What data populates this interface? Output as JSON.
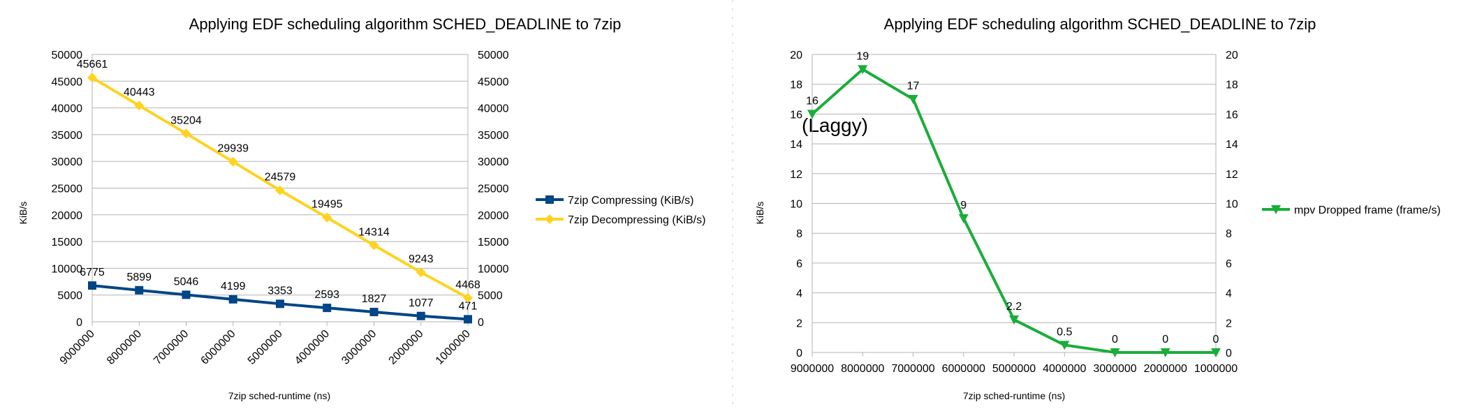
{
  "chart_data": [
    {
      "type": "line",
      "title": "Applying EDF scheduling algorithm SCHED_DEADLINE to 7zip",
      "xlabel": "7zip sched-runtime (ns)",
      "ylabel": "KiB/s",
      "categories": [
        "9000000",
        "8000000",
        "7000000",
        "6000000",
        "5000000",
        "4000000",
        "3000000",
        "2000000",
        "1000000"
      ],
      "ylim": [
        0,
        50000
      ],
      "yticks": [
        0,
        5000,
        10000,
        15000,
        20000,
        25000,
        30000,
        35000,
        40000,
        45000,
        50000
      ],
      "secondary_y": true,
      "grid": true,
      "legend_position": "right",
      "series": [
        {
          "name": "7zip Compressing (KiB/s)",
          "values": [
            6775,
            5899,
            5046,
            4199,
            3353,
            2593,
            1827,
            1077,
            471
          ],
          "labels": [
            "6775",
            "5899",
            "5046",
            "4199",
            "3353",
            "2593",
            "1827",
            "1077",
            "471"
          ],
          "color": "#004586",
          "marker": "square"
        },
        {
          "name": "7zip Decompressing (KiB/s)",
          "values": [
            45661,
            40443,
            35204,
            29939,
            24579,
            19495,
            14314,
            9243,
            4468
          ],
          "labels": [
            "45661",
            "40443",
            "35204",
            "29939",
            "24579",
            "19495",
            "14314",
            "9243",
            "4468"
          ],
          "color": "#ffd320",
          "marker": "diamond"
        }
      ]
    },
    {
      "type": "line",
      "title": "Applying EDF scheduling algorithm SCHED_DEADLINE to 7zip",
      "xlabel": "7zip sched-runtime (ns)",
      "ylabel": "KiB/s",
      "categories": [
        "9000000",
        "8000000",
        "7000000",
        "6000000",
        "5000000",
        "4000000",
        "3000000",
        "2000000",
        "1000000"
      ],
      "ylim": [
        0,
        20
      ],
      "yticks": [
        0,
        2,
        4,
        6,
        8,
        10,
        12,
        14,
        16,
        18,
        20
      ],
      "secondary_y": true,
      "grid": true,
      "legend_position": "right",
      "annotation": "(Laggy)",
      "series": [
        {
          "name": "mpv Dropped frame (frame/s)",
          "values": [
            16,
            19,
            17,
            9,
            2.2,
            0.5,
            0,
            0,
            0
          ],
          "labels": [
            "16",
            "19",
            "17",
            "9",
            "2.2",
            "0.5",
            "0",
            "0",
            "0"
          ],
          "color": "#1aad3a",
          "marker": "triangle-down"
        }
      ]
    }
  ]
}
